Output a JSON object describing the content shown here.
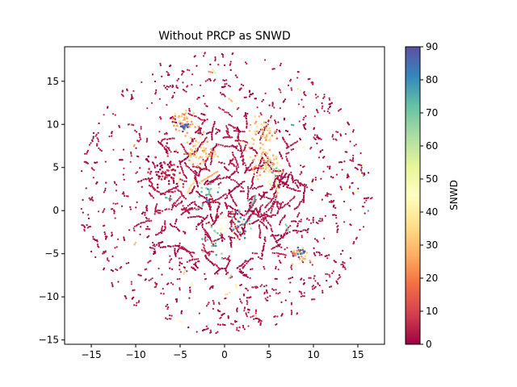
{
  "chart_data": {
    "type": "scatter",
    "title": "Without PRCP as SNWD",
    "xlabel": "",
    "ylabel": "",
    "xlim": [
      -18,
      18
    ],
    "ylim": [
      -15.5,
      19
    ],
    "xticks": [
      -15,
      -10,
      -5,
      0,
      5,
      10,
      15
    ],
    "yticks": [
      -15,
      -10,
      -5,
      0,
      5,
      10,
      15
    ],
    "grid": false,
    "legend": "none",
    "colorbar": {
      "label": "SNWD",
      "range": [
        0,
        90
      ],
      "ticks": [
        0,
        10,
        20,
        30,
        40,
        50,
        60,
        70,
        80,
        90
      ],
      "colormap": "Spectral",
      "stops": [
        "#9e0142",
        "#d53e4f",
        "#f46d43",
        "#fdae61",
        "#fee08b",
        "#ffffbf",
        "#e6f598",
        "#abdda4",
        "#66c2a5",
        "#3288bd",
        "#5e4fa2"
      ]
    },
    "extent": {
      "center": [
        0,
        2
      ],
      "radius": 16.5
    },
    "clusters": [
      {
        "x": -6.8,
        "y": 4.6,
        "spread": 0.9,
        "n": 70,
        "snwd": 2
      },
      {
        "x": -4.5,
        "y": 10.2,
        "spread": 0.7,
        "n": 45,
        "snwd": 30
      },
      {
        "x": -4.6,
        "y": 9.8,
        "spread": 0.3,
        "n": 12,
        "snwd": 88
      },
      {
        "x": -2.7,
        "y": 6.8,
        "spread": 0.9,
        "n": 60,
        "snwd": 32
      },
      {
        "x": 4.2,
        "y": 9.2,
        "spread": 0.7,
        "n": 45,
        "snwd": 30
      },
      {
        "x": 4.5,
        "y": 5.8,
        "spread": 0.9,
        "n": 60,
        "snwd": 30
      },
      {
        "x": 8.5,
        "y": -5.3,
        "spread": 0.5,
        "n": 25,
        "snwd": 25
      },
      {
        "x": 8.6,
        "y": -5.0,
        "spread": 0.3,
        "n": 10,
        "snwd": 85
      },
      {
        "x": -2.0,
        "y": 2.0,
        "spread": 0.8,
        "n": 20,
        "snwd": 72
      },
      {
        "x": 2.0,
        "y": -1.0,
        "spread": 0.8,
        "n": 20,
        "snwd": 78
      },
      {
        "x": -1.2,
        "y": -4.0,
        "spread": 0.8,
        "n": 15,
        "snwd": 70
      },
      {
        "x": 5.5,
        "y": 4.8,
        "spread": 0.6,
        "n": 15,
        "snwd": 60
      },
      {
        "x": 0.2,
        "y": -2.0,
        "spread": 1.2,
        "n": 15,
        "snwd": 40
      }
    ]
  }
}
